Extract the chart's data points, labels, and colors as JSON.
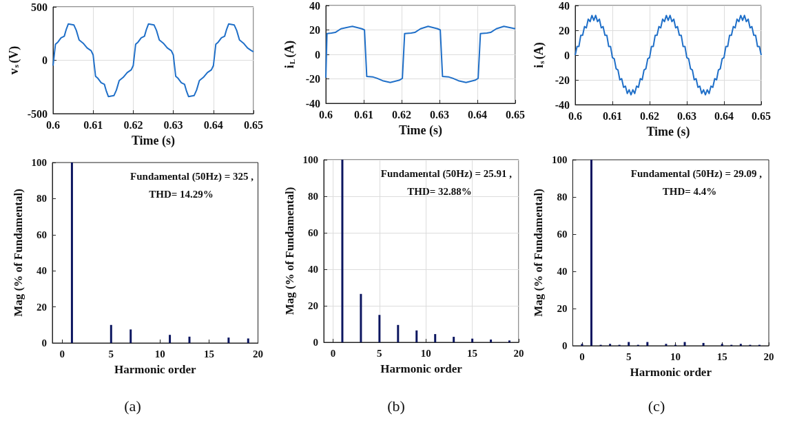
{
  "chart_data": [
    {
      "type": "line",
      "xlabel": "Time (s)",
      "ylabel": "v$_{s}$(V)",
      "xlim": [
        0.6,
        0.65
      ],
      "xticks": [
        0.6,
        0.61,
        0.62,
        0.63,
        0.64,
        0.65
      ],
      "ylim": [
        -500,
        500
      ],
      "yticks": [
        -500,
        0,
        500
      ],
      "grid": true,
      "series": [
        {
          "color": "#1f6fc8",
          "x": [
            0.6,
            0.6003,
            0.6006,
            0.6012,
            0.602,
            0.6028,
            0.6033,
            0.6038,
            0.6045,
            0.6052,
            0.6058,
            0.6065,
            0.6075,
            0.6085,
            0.6095,
            0.61,
            0.6103,
            0.6106,
            0.6112,
            0.612,
            0.6128,
            0.6133,
            0.6138,
            0.6145,
            0.6152,
            0.6158,
            0.6165,
            0.6175,
            0.6185,
            0.6195,
            0.62,
            0.6203,
            0.6206,
            0.6212,
            0.622,
            0.6228,
            0.6233,
            0.6238,
            0.6245,
            0.6252,
            0.6258,
            0.6265,
            0.6275,
            0.6285,
            0.6295,
            0.63,
            0.6303,
            0.6306,
            0.6312,
            0.632,
            0.6328,
            0.6333,
            0.6338,
            0.6345,
            0.6352,
            0.6358,
            0.6365,
            0.6375,
            0.6385,
            0.6395,
            0.64,
            0.6403,
            0.6406,
            0.6412,
            0.642,
            0.6428,
            0.6433,
            0.6438,
            0.6445,
            0.6452,
            0.6458,
            0.6465,
            0.6475,
            0.6485,
            0.6495,
            0.65
          ],
          "values": [
            -50,
            50,
            150,
            170,
            210,
            225,
            290,
            340,
            335,
            330,
            280,
            190,
            160,
            115,
            90,
            50,
            -50,
            -150,
            -170,
            -210,
            -225,
            -290,
            -340,
            -335,
            -330,
            -280,
            -190,
            -160,
            -115,
            -90,
            -50,
            50,
            150,
            170,
            210,
            225,
            290,
            340,
            335,
            330,
            280,
            190,
            160,
            115,
            90,
            50,
            -50,
            -150,
            -170,
            -210,
            -225,
            -290,
            -340,
            -335,
            -330,
            -280,
            -190,
            -160,
            -115,
            -90,
            -50,
            50,
            150,
            170,
            210,
            225,
            290,
            340,
            335,
            330,
            280,
            190,
            160,
            115,
            90,
            80
          ]
        }
      ]
    },
    {
      "type": "line",
      "xlabel": "Time (s)",
      "ylabel": "i$_{L}$(A)",
      "xlim": [
        0.6,
        0.65
      ],
      "xticks": [
        0.6,
        0.61,
        0.62,
        0.63,
        0.64,
        0.65
      ],
      "ylim": [
        -40,
        40
      ],
      "yticks": [
        -40,
        -20,
        0,
        20,
        40
      ],
      "grid": true,
      "series": [
        {
          "color": "#1f6fc8",
          "x": [
            0.6,
            0.6003,
            0.6015,
            0.6025,
            0.604,
            0.607,
            0.6095,
            0.6102,
            0.6108,
            0.6125,
            0.6135,
            0.615,
            0.617,
            0.6195,
            0.6202,
            0.6208,
            0.6225,
            0.6235,
            0.625,
            0.627,
            0.6295,
            0.6302,
            0.6308,
            0.6325,
            0.6335,
            0.635,
            0.637,
            0.6395,
            0.6402,
            0.6408,
            0.6425,
            0.6435,
            0.645,
            0.647,
            0.65
          ],
          "values": [
            -19,
            17,
            17.5,
            18,
            21,
            23,
            21,
            20,
            -18,
            -18.5,
            -19.5,
            -21.5,
            -23,
            -21,
            -19.5,
            17,
            17.5,
            18,
            21,
            23,
            21,
            20,
            -18,
            -18.5,
            -19.5,
            -21.5,
            -23,
            -21,
            -19.5,
            17,
            17.5,
            18,
            21,
            23,
            21
          ]
        }
      ]
    },
    {
      "type": "line",
      "xlabel": "Time (s)",
      "ylabel": "i$_{s}$(A)",
      "xlim": [
        0.6,
        0.65
      ],
      "xticks": [
        0.6,
        0.61,
        0.62,
        0.63,
        0.64,
        0.65
      ],
      "ylim": [
        -40,
        40
      ],
      "yticks": [
        -40,
        -20,
        0,
        20,
        40
      ],
      "grid": true,
      "series": [
        {
          "color": "#1f6fc8",
          "x": [
            0.6,
            0.6005,
            0.601,
            0.6015,
            0.602,
            0.6025,
            0.603,
            0.6035,
            0.604,
            0.6045,
            0.605,
            0.6055,
            0.606,
            0.6065,
            0.607,
            0.6075,
            0.608,
            0.6085,
            0.609,
            0.6095,
            0.61,
            0.6105,
            0.611,
            0.6115,
            0.612,
            0.6125,
            0.613,
            0.6135,
            0.614,
            0.6145,
            0.615,
            0.6155,
            0.616,
            0.6165,
            0.617,
            0.6175,
            0.618,
            0.6185,
            0.619,
            0.6195,
            0.62,
            0.6205,
            0.621,
            0.6215,
            0.622,
            0.6225,
            0.623,
            0.6235,
            0.624,
            0.6245,
            0.625,
            0.6255,
            0.626,
            0.6265,
            0.627,
            0.6275,
            0.628,
            0.6285,
            0.629,
            0.6295,
            0.63,
            0.6305,
            0.631,
            0.6315,
            0.632,
            0.6325,
            0.633,
            0.6335,
            0.634,
            0.6345,
            0.635,
            0.6355,
            0.636,
            0.6365,
            0.637,
            0.6375,
            0.638,
            0.6385,
            0.639,
            0.6395,
            0.64,
            0.6405,
            0.641,
            0.6415,
            0.642,
            0.6425,
            0.643,
            0.6435,
            0.644,
            0.6445,
            0.645,
            0.6455,
            0.646,
            0.6465,
            0.647,
            0.6475,
            0.648,
            0.6485,
            0.649,
            0.6495,
            0.65
          ],
          "values": [
            0,
            7,
            7,
            16,
            16,
            23,
            22,
            29,
            27,
            32,
            28,
            32,
            27,
            29,
            22,
            23,
            16,
            16,
            7,
            7,
            -2,
            -3,
            -11,
            -12,
            -20,
            -19,
            -26,
            -25,
            -31,
            -28,
            -32,
            -28,
            -31,
            -25,
            -26,
            -19,
            -20,
            -12,
            -11,
            -3,
            -2,
            7,
            7,
            16,
            16,
            23,
            22,
            29,
            27,
            32,
            28,
            32,
            27,
            29,
            22,
            23,
            16,
            16,
            7,
            7,
            -2,
            -3,
            -11,
            -12,
            -20,
            -19,
            -26,
            -25,
            -31,
            -28,
            -32,
            -28,
            -31,
            -25,
            -26,
            -19,
            -20,
            -12,
            -11,
            -3,
            -2,
            7,
            7,
            16,
            16,
            23,
            22,
            29,
            27,
            32,
            28,
            32,
            27,
            29,
            22,
            23,
            16,
            16,
            7,
            7,
            0
          ]
        }
      ]
    },
    {
      "type": "bar",
      "xlabel": "Harmonic order",
      "ylabel": "Mag (% of Fundamental)",
      "xlim": [
        -1,
        20
      ],
      "xticks": [
        0,
        5,
        10,
        15,
        20
      ],
      "ylim": [
        0,
        100
      ],
      "yticks": [
        0,
        20,
        40,
        60,
        80,
        100
      ],
      "grid": false,
      "annotations": [
        "Fundamental (50Hz) = 325 ,",
        "THD= 14.29%",
        "(a)"
      ],
      "series": [
        {
          "color": "#0c1660",
          "x": [
            1,
            5,
            7,
            11,
            13,
            17,
            19
          ],
          "values": [
            100,
            10,
            7.5,
            4.5,
            3.5,
            3,
            2.5
          ]
        }
      ]
    },
    {
      "type": "bar",
      "xlabel": "Harmonic order",
      "ylabel": "Mag (% of Fundamental)",
      "xlim": [
        -1,
        20
      ],
      "xticks": [
        0,
        5,
        10,
        15,
        20
      ],
      "ylim": [
        0,
        100
      ],
      "yticks": [
        0,
        20,
        40,
        60,
        80,
        100
      ],
      "grid": true,
      "annotations": [
        "Fundamental (50Hz) = 25.91 ,",
        "THD= 32.88%",
        "(b)"
      ],
      "series": [
        {
          "color": "#0c1660",
          "x": [
            1,
            3,
            5,
            7,
            9,
            11,
            13,
            15,
            17,
            19
          ],
          "values": [
            100,
            26.5,
            15,
            9.5,
            6.5,
            4.5,
            3,
            2,
            1.5,
            1
          ]
        }
      ]
    },
    {
      "type": "bar",
      "xlabel": "Harmonic order",
      "ylabel": "Mag (% of Fundamental)",
      "xlim": [
        -1,
        20
      ],
      "xticks": [
        0,
        5,
        10,
        15,
        20
      ],
      "ylim": [
        0,
        100
      ],
      "yticks": [
        0,
        20,
        40,
        60,
        80,
        100
      ],
      "grid": false,
      "annotations": [
        "Fundamental (50Hz) = 29.09 ,",
        "THD= 4.4%",
        "(c)"
      ],
      "series": [
        {
          "color": "#0c1660",
          "x": [
            0,
            1,
            2,
            3,
            4,
            5,
            6,
            7,
            9,
            10,
            11,
            13,
            15,
            16,
            17,
            18,
            19
          ],
          "values": [
            1,
            100,
            0.5,
            1,
            0.5,
            2,
            0.5,
            2,
            1,
            0.5,
            2,
            1.5,
            1,
            0.5,
            1,
            0.5,
            0.5
          ]
        }
      ]
    }
  ]
}
